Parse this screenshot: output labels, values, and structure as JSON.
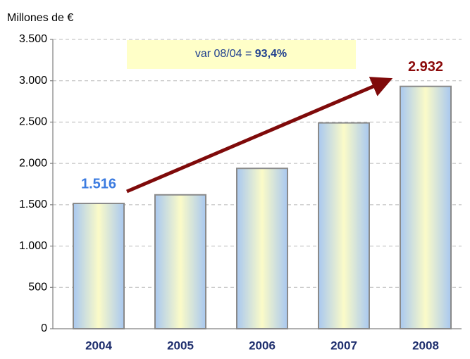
{
  "chart_data": {
    "type": "bar",
    "y_label": "Millones de €",
    "annotation": {
      "text": "var 08/04 = ",
      "bold": "93,4%"
    },
    "categories": [
      "2004",
      "2005",
      "2006",
      "2007",
      "2008"
    ],
    "values": [
      1516,
      1620,
      1940,
      2490,
      2932
    ],
    "value_labels": [
      "1.516",
      null,
      null,
      null,
      "2.932"
    ],
    "ylim": [
      0,
      3500
    ],
    "yticks": [
      0,
      500,
      {
        "value": 1000,
        "label": "1.000"
      },
      {
        "value": 1500,
        "label": "1.500"
      },
      {
        "value": 2000,
        "label": "2.000"
      },
      {
        "value": 2500,
        "label": "2.500"
      },
      {
        "value": 3000,
        "label": "3.000"
      },
      {
        "value": 3500,
        "label": "3.500"
      }
    ],
    "grid": true
  }
}
